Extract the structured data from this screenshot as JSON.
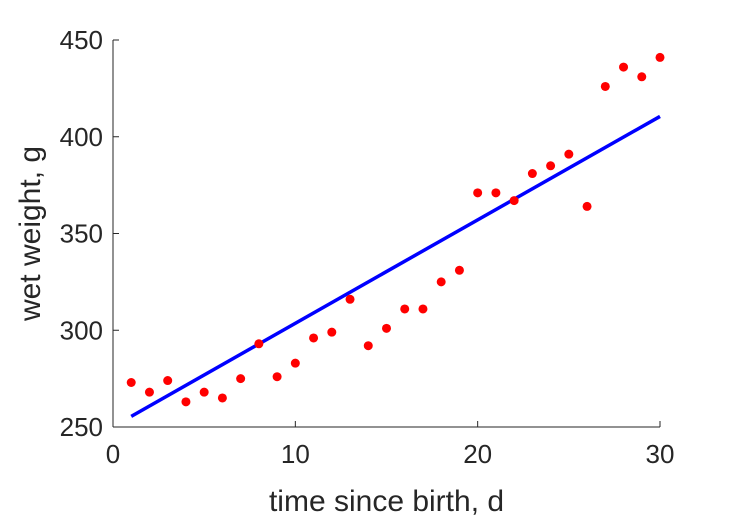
{
  "chart_data": {
    "type": "scatter",
    "title": "",
    "xlabel": "time since birth, d",
    "ylabel": "wet weight, g",
    "xlim": [
      0,
      30
    ],
    "ylim": [
      250,
      450
    ],
    "xticks": [
      "0",
      "10",
      "20",
      "30"
    ],
    "yticks": [
      "250",
      "300",
      "350",
      "400",
      "450"
    ],
    "xtick_values": [
      0,
      10,
      20,
      30
    ],
    "ytick_values": [
      250,
      300,
      350,
      400,
      450
    ],
    "grid": false,
    "series": [
      {
        "kind": "scatter",
        "color": "#ff0000",
        "x": [
          1,
          2,
          3,
          4,
          5,
          6,
          7,
          8,
          9,
          10,
          11,
          12,
          13,
          14,
          15,
          16,
          17,
          18,
          19,
          20,
          21,
          22,
          23,
          24,
          25,
          26,
          27,
          28,
          29,
          30
        ],
        "y": [
          273,
          268,
          274,
          263,
          268,
          265,
          275,
          293,
          276,
          283,
          296,
          299,
          316,
          292,
          301,
          311,
          311,
          325,
          331,
          371,
          371,
          367,
          381,
          385,
          391,
          364,
          426,
          436,
          431,
          441
        ]
      },
      {
        "kind": "line",
        "color": "#0000ff",
        "x": [
          1,
          30
        ],
        "y": [
          255.5,
          410.5
        ]
      }
    ]
  }
}
